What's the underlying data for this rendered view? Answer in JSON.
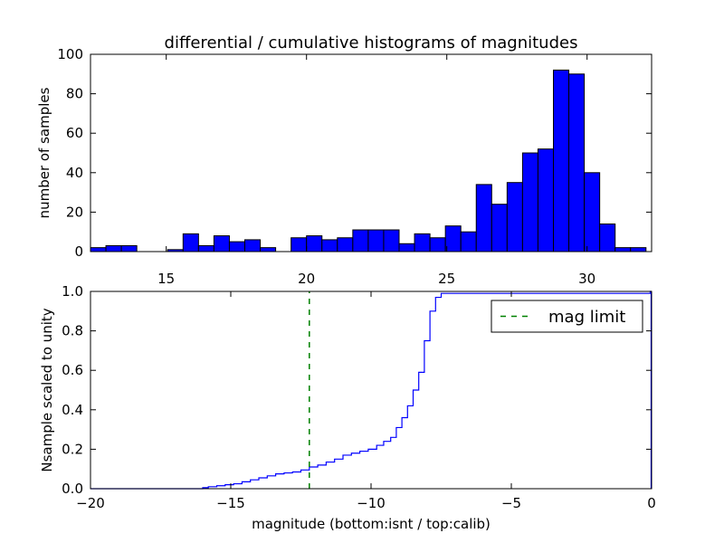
{
  "chart_data": [
    {
      "type": "bar",
      "title": "differential / cumulative histograms of magnitudes",
      "xlabel": "",
      "ylabel": "number of samples",
      "xlim": [
        12.3,
        32.3
      ],
      "ylim": [
        0,
        100
      ],
      "xticks": [
        "15",
        "20",
        "25",
        "30"
      ],
      "yticks": [
        "0",
        "20",
        "40",
        "60",
        "80",
        "100"
      ],
      "bar_color": "#0000ff",
      "bin_width": 0.55,
      "bins": [
        {
          "x0": 12.3,
          "count": 2
        },
        {
          "x0": 12.85,
          "count": 3
        },
        {
          "x0": 13.4,
          "count": 3
        },
        {
          "x0": 13.95,
          "count": 0
        },
        {
          "x0": 14.5,
          "count": 0
        },
        {
          "x0": 15.05,
          "count": 1
        },
        {
          "x0": 15.6,
          "count": 9
        },
        {
          "x0": 16.15,
          "count": 3
        },
        {
          "x0": 16.7,
          "count": 8
        },
        {
          "x0": 17.25,
          "count": 5
        },
        {
          "x0": 17.8,
          "count": 6
        },
        {
          "x0": 18.35,
          "count": 2
        },
        {
          "x0": 18.9,
          "count": 0
        },
        {
          "x0": 19.45,
          "count": 7
        },
        {
          "x0": 20.0,
          "count": 8
        },
        {
          "x0": 20.55,
          "count": 6
        },
        {
          "x0": 21.1,
          "count": 7
        },
        {
          "x0": 21.65,
          "count": 11
        },
        {
          "x0": 22.2,
          "count": 11
        },
        {
          "x0": 22.75,
          "count": 11
        },
        {
          "x0": 23.3,
          "count": 4
        },
        {
          "x0": 23.85,
          "count": 9
        },
        {
          "x0": 24.4,
          "count": 7
        },
        {
          "x0": 24.95,
          "count": 13
        },
        {
          "x0": 25.5,
          "count": 10
        },
        {
          "x0": 26.05,
          "count": 34
        },
        {
          "x0": 26.6,
          "count": 24
        },
        {
          "x0": 27.15,
          "count": 35
        },
        {
          "x0": 27.7,
          "count": 50
        },
        {
          "x0": 28.25,
          "count": 52
        },
        {
          "x0": 28.8,
          "count": 92
        },
        {
          "x0": 29.35,
          "count": 90
        },
        {
          "x0": 29.9,
          "count": 40
        },
        {
          "x0": 30.45,
          "count": 14
        },
        {
          "x0": 31.0,
          "count": 2
        },
        {
          "x0": 31.55,
          "count": 2
        }
      ]
    },
    {
      "type": "line",
      "style": "step",
      "title": "",
      "xlabel": "magnitude (bottom:isnt / top:calib)",
      "ylabel": "Nsample scaled to unity",
      "xlim": [
        -20,
        0
      ],
      "ylim": [
        0,
        1.0
      ],
      "xticks": [
        "−20",
        "−15",
        "−10",
        "−5",
        "0"
      ],
      "yticks": [
        "0.0",
        "0.2",
        "0.4",
        "0.6",
        "0.8",
        "1.0"
      ],
      "legend_position": "top-right",
      "series": [
        {
          "line_color": "#0000ff",
          "x": [
            -20.0,
            -16.0,
            -15.8,
            -15.5,
            -15.2,
            -14.9,
            -14.6,
            -14.3,
            -14.0,
            -13.7,
            -13.4,
            -13.1,
            -12.8,
            -12.5,
            -12.2,
            -11.9,
            -11.6,
            -11.3,
            -11.0,
            -10.7,
            -10.4,
            -10.1,
            -9.8,
            -9.55,
            -9.3,
            -9.1,
            -8.9,
            -8.7,
            -8.5,
            -8.3,
            -8.1,
            -7.9,
            -7.7,
            -7.5,
            -0.05
          ],
          "y": [
            0.0,
            0.005,
            0.01,
            0.015,
            0.02,
            0.025,
            0.035,
            0.045,
            0.055,
            0.065,
            0.075,
            0.08,
            0.085,
            0.095,
            0.11,
            0.12,
            0.135,
            0.15,
            0.17,
            0.18,
            0.19,
            0.2,
            0.22,
            0.24,
            0.26,
            0.31,
            0.36,
            0.42,
            0.5,
            0.59,
            0.75,
            0.9,
            0.97,
            0.99,
            1.0
          ]
        },
        {
          "name": "mag limit",
          "line_color": "#008000",
          "dashed": true,
          "x": [
            -12.2,
            -12.2
          ],
          "y": [
            0.0,
            1.0
          ]
        }
      ]
    }
  ]
}
